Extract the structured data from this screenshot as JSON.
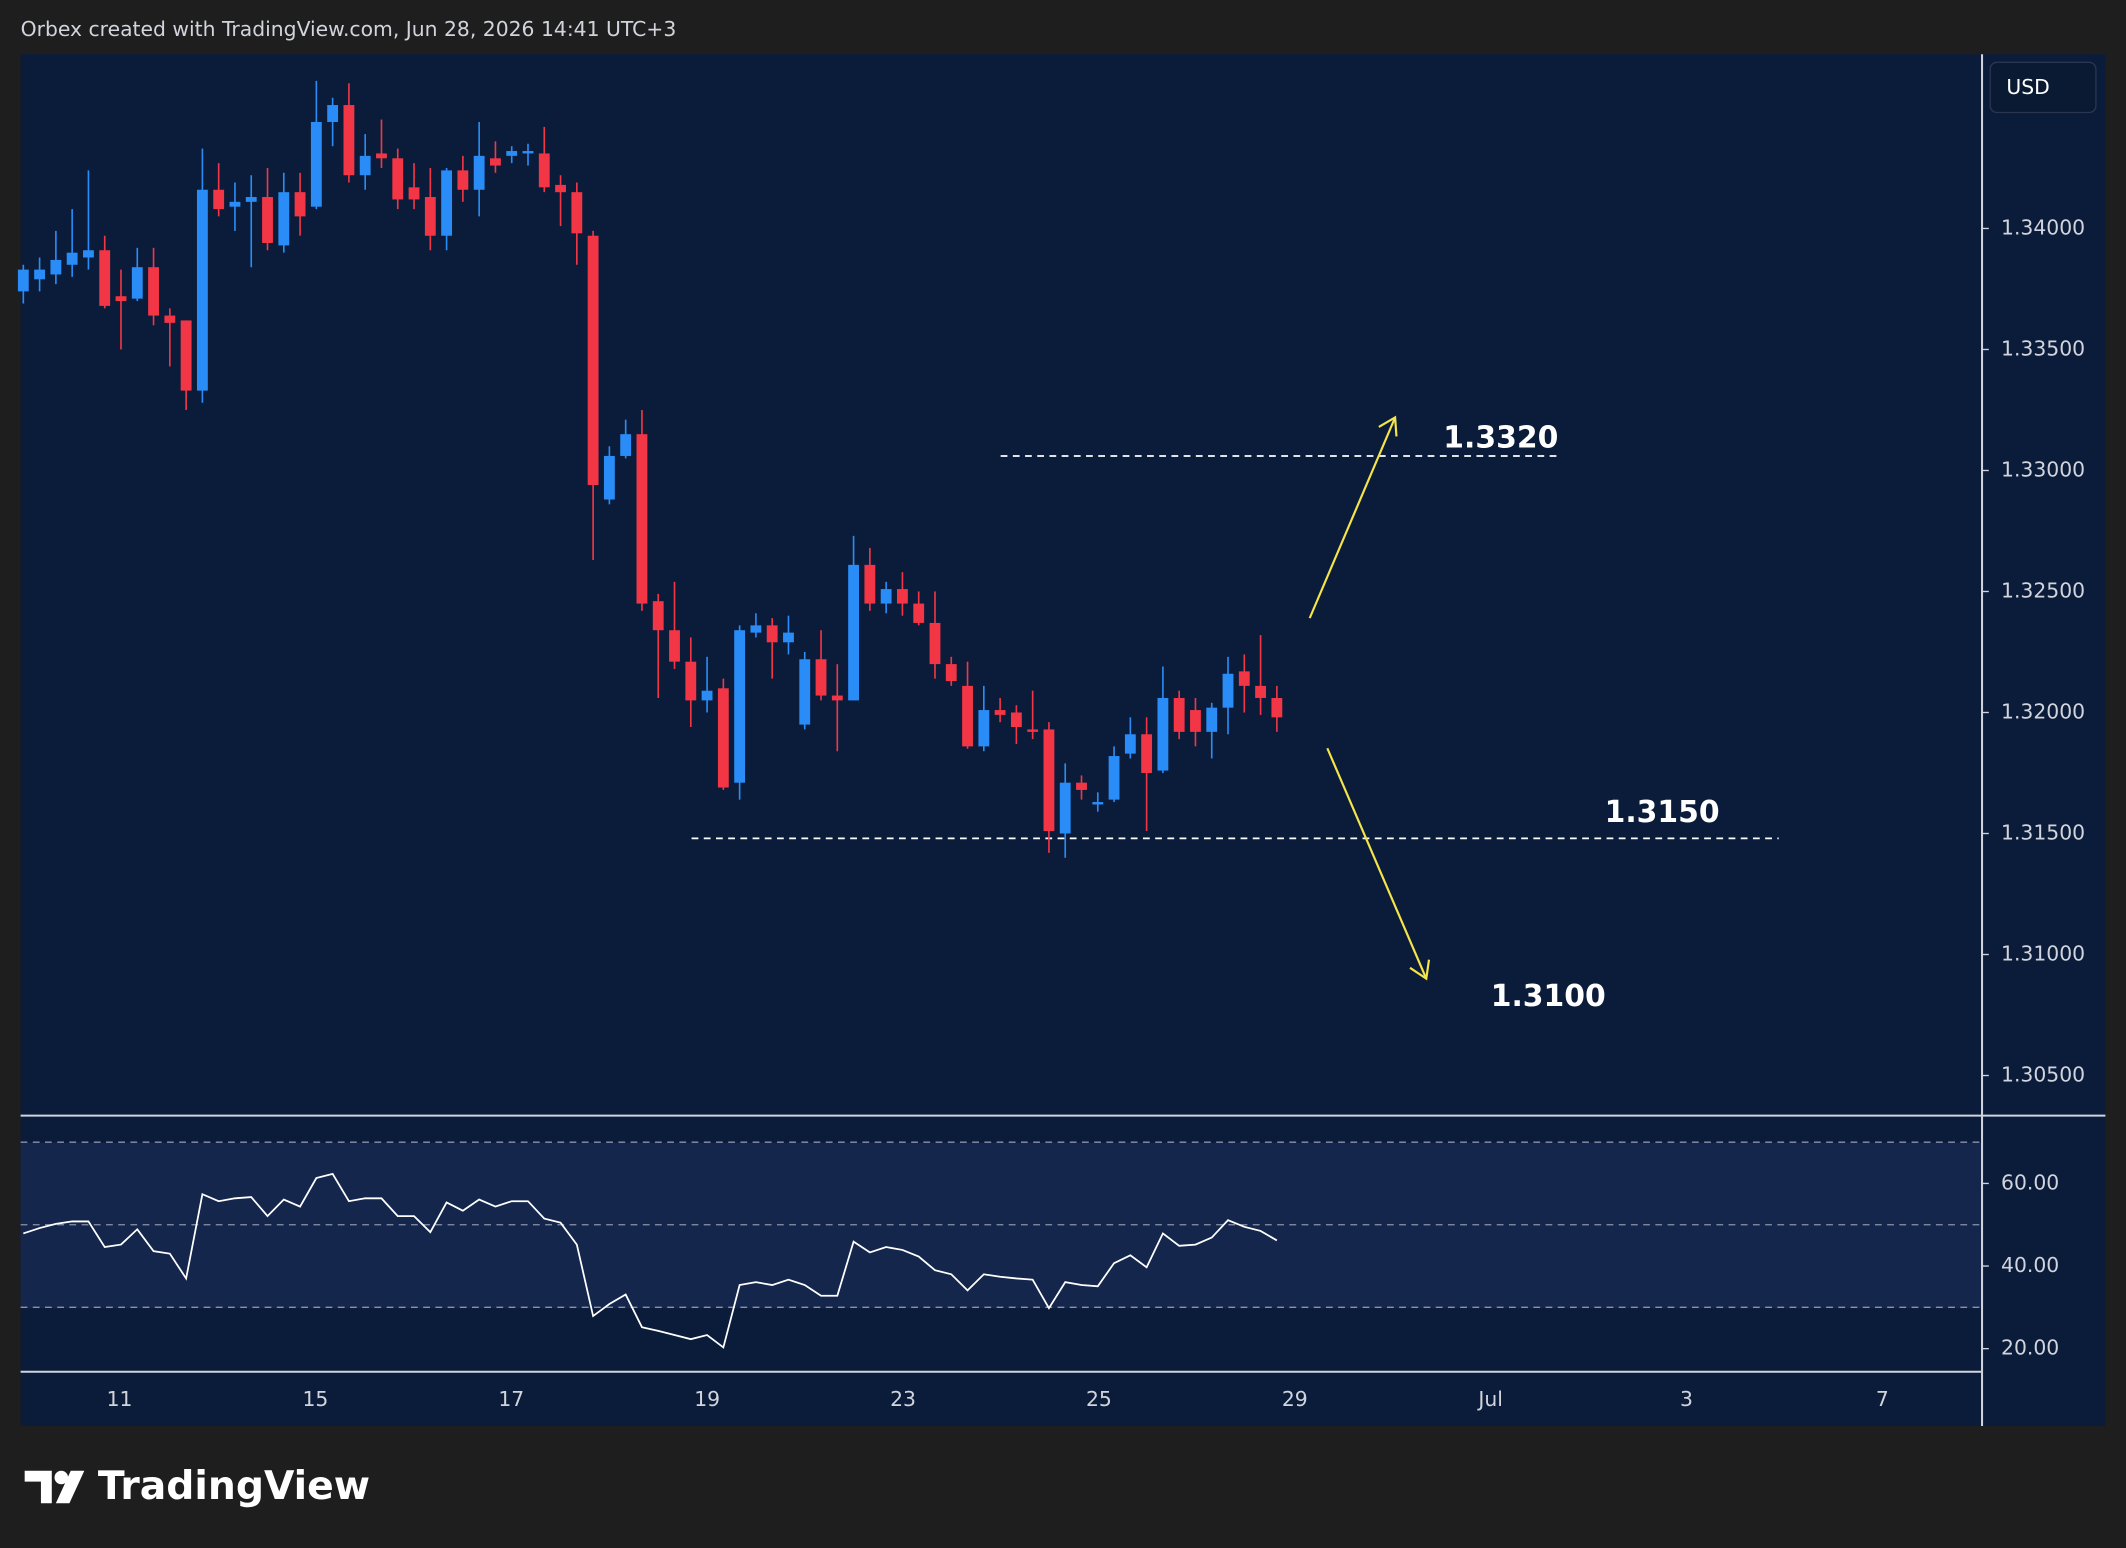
{
  "header": "Orbex created with TradingView.com, Jun 28, 2026 14:41 UTC+3",
  "currency": "USD",
  "brand": "TradingView",
  "chart_data": [
    {
      "type": "candlestick",
      "up_color": "#2a8cf7",
      "down_color": "#f23645",
      "ylim": [
        1.3034,
        1.3472
      ],
      "yticks": [
        {
          "value": 1.34,
          "label": "1.34000"
        },
        {
          "value": 1.335,
          "label": "1.33500"
        },
        {
          "value": 1.33,
          "label": "1.33000"
        },
        {
          "value": 1.325,
          "label": "1.32500"
        },
        {
          "value": 1.32,
          "label": "1.32000"
        },
        {
          "value": 1.315,
          "label": "1.31500"
        },
        {
          "value": 1.31,
          "label": "1.31000"
        },
        {
          "value": 1.305,
          "label": "1.30500"
        }
      ],
      "xticks": [
        "11",
        "15",
        "17",
        "19",
        "23",
        "25",
        "29",
        "Jul",
        "3",
        "7"
      ],
      "open": [
        1.3374,
        1.3379,
        1.3381,
        1.3385,
        1.3388,
        1.3391,
        1.3372,
        1.3371,
        1.3384,
        1.3364,
        1.3362,
        1.3333,
        1.3416,
        1.3409,
        1.3411,
        1.3413,
        1.3393,
        1.3415,
        1.3409,
        1.3444,
        1.3451,
        1.3422,
        1.3431,
        1.3429,
        1.3417,
        1.3413,
        1.3397,
        1.3424,
        1.3416,
        1.3429,
        1.343,
        1.3431,
        1.3431,
        1.3418,
        1.3415,
        1.3397,
        1.3288,
        1.3306,
        1.3315,
        1.3246,
        1.3234,
        1.3221,
        1.3205,
        1.321,
        1.3171,
        1.3233,
        1.3236,
        1.3229,
        1.3195,
        1.3222,
        1.3207,
        1.3205,
        1.3261,
        1.3245,
        1.3251,
        1.3245,
        1.3237,
        1.322,
        1.3211,
        1.3186,
        1.3201,
        1.32,
        1.3193,
        1.3193,
        1.315,
        1.3171,
        1.3162,
        1.3164,
        1.3183,
        1.3191,
        1.3176,
        1.3206,
        1.3201,
        1.3192,
        1.3202,
        1.3217,
        1.3211,
        1.3206
      ],
      "high": [
        1.3385,
        1.3388,
        1.3399,
        1.3408,
        1.3424,
        1.3397,
        1.3383,
        1.3392,
        1.3392,
        1.3367,
        1.3362,
        1.3433,
        1.3427,
        1.3419,
        1.3422,
        1.3425,
        1.3423,
        1.3423,
        1.3461,
        1.3454,
        1.346,
        1.3439,
        1.3445,
        1.3433,
        1.3427,
        1.3425,
        1.3425,
        1.343,
        1.3444,
        1.3436,
        1.3434,
        1.3435,
        1.3442,
        1.3422,
        1.3419,
        1.3399,
        1.331,
        1.3321,
        1.3325,
        1.3249,
        1.3254,
        1.3231,
        1.3223,
        1.3214,
        1.3236,
        1.3241,
        1.3239,
        1.324,
        1.3225,
        1.3234,
        1.322,
        1.3273,
        1.3268,
        1.3254,
        1.3258,
        1.325,
        1.325,
        1.3223,
        1.3221,
        1.3211,
        1.3206,
        1.3203,
        1.3209,
        1.3196,
        1.3179,
        1.3174,
        1.3167,
        1.3186,
        1.3198,
        1.3198,
        1.3219,
        1.3209,
        1.3206,
        1.3204,
        1.3223,
        1.3224,
        1.3232,
        1.3211
      ],
      "low": [
        1.3369,
        1.3374,
        1.3377,
        1.338,
        1.3383,
        1.3367,
        1.335,
        1.337,
        1.336,
        1.3343,
        1.3325,
        1.3328,
        1.3405,
        1.3399,
        1.3384,
        1.3391,
        1.339,
        1.3397,
        1.3408,
        1.3434,
        1.3419,
        1.3416,
        1.3425,
        1.3408,
        1.3408,
        1.3391,
        1.3391,
        1.3411,
        1.3405,
        1.3423,
        1.3427,
        1.3426,
        1.3415,
        1.3401,
        1.3385,
        1.3263,
        1.3286,
        1.3305,
        1.3242,
        1.3206,
        1.3218,
        1.3194,
        1.32,
        1.3168,
        1.3164,
        1.3231,
        1.3214,
        1.3224,
        1.3193,
        1.3205,
        1.3184,
        1.3205,
        1.3242,
        1.3241,
        1.324,
        1.3236,
        1.3214,
        1.3211,
        1.3185,
        1.3184,
        1.3196,
        1.3187,
        1.3189,
        1.3142,
        1.314,
        1.3164,
        1.3159,
        1.3163,
        1.3181,
        1.3151,
        1.3175,
        1.3189,
        1.3186,
        1.3181,
        1.3191,
        1.32,
        1.3199,
        1.3192
      ],
      "close": [
        1.3383,
        1.3383,
        1.3387,
        1.339,
        1.3391,
        1.3368,
        1.337,
        1.3384,
        1.3364,
        1.3361,
        1.3333,
        1.3416,
        1.3408,
        1.3411,
        1.3413,
        1.3394,
        1.3415,
        1.3405,
        1.3444,
        1.3451,
        1.3422,
        1.343,
        1.3429,
        1.3412,
        1.3412,
        1.3397,
        1.3424,
        1.3416,
        1.343,
        1.3426,
        1.3432,
        1.3432,
        1.3417,
        1.3415,
        1.3398,
        1.3294,
        1.3306,
        1.3315,
        1.3245,
        1.3234,
        1.3221,
        1.3205,
        1.3209,
        1.3169,
        1.3234,
        1.3236,
        1.3229,
        1.3233,
        1.3222,
        1.3207,
        1.3205,
        1.3261,
        1.3245,
        1.3251,
        1.3245,
        1.3237,
        1.322,
        1.3213,
        1.3186,
        1.3201,
        1.3199,
        1.3194,
        1.3192,
        1.3151,
        1.3171,
        1.3168,
        1.3163,
        1.3182,
        1.3191,
        1.3175,
        1.3206,
        1.3192,
        1.3192,
        1.3202,
        1.3216,
        1.3211,
        1.3206,
        1.3198
      ],
      "level_lines": [
        1.3306,
        1.3148
      ],
      "annotations": [
        "1.3320",
        "1.3150",
        "1.3100"
      ]
    },
    {
      "type": "line",
      "color": "#ffffff",
      "ylim": [
        14.4,
        76.1
      ],
      "yticks": [
        {
          "value": 60,
          "label": "60.00"
        },
        {
          "value": 40,
          "label": "40.00"
        },
        {
          "value": 20,
          "label": "20.00"
        }
      ],
      "levels": [
        70,
        50,
        30
      ],
      "values": [
        47.9,
        49.2,
        50.2,
        50.8,
        50.8,
        44.6,
        45.2,
        48.9,
        43.6,
        43.0,
        37.0,
        57.4,
        55.7,
        56.4,
        56.7,
        52.1,
        56.1,
        54.4,
        61.3,
        62.3,
        55.7,
        56.4,
        56.4,
        52.1,
        52.1,
        48.2,
        55.4,
        53.4,
        56.1,
        54.4,
        55.7,
        55.7,
        51.5,
        50.5,
        45.2,
        27.9,
        30.8,
        33.1,
        25.2,
        24.3,
        23.3,
        22.3,
        23.3,
        20.3,
        35.4,
        36.1,
        35.4,
        36.7,
        35.4,
        32.8,
        32.8,
        45.9,
        43.3,
        44.6,
        43.9,
        42.3,
        39.0,
        38.0,
        34.1,
        38.0,
        37.4,
        37.0,
        36.7,
        29.8,
        36.1,
        35.4,
        35.1,
        40.7,
        42.6,
        39.7,
        47.9,
        44.9,
        45.2,
        46.9,
        51.1,
        49.5,
        48.5,
        46.2
      ]
    }
  ]
}
